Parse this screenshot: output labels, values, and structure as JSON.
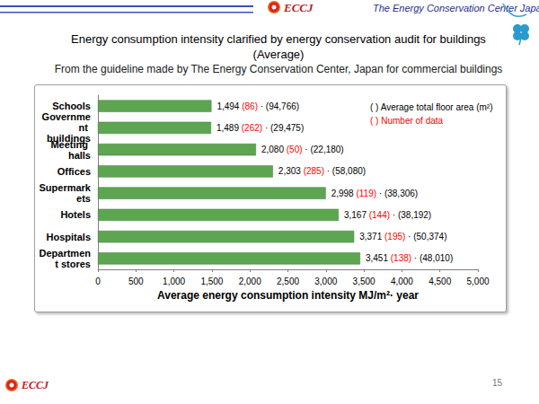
{
  "page": {
    "header": {
      "organization": "The Energy Conservation Center Japan",
      "logo": "ECCJ"
    },
    "title": "Energy consumption intensity clarified by energy conservation audit for buildings",
    "title_line2": "(Average)",
    "subtitle": "From the guideline made by The Energy Conservation Center, Japan for commercial buildings",
    "footer": {
      "logo": "ECCJ",
      "page_number": "15"
    }
  },
  "chart_data": {
    "type": "bar",
    "orientation": "horizontal",
    "categories": [
      "Schools",
      "Government buildings",
      "Meeting halls",
      "Offices",
      "Supermarkets",
      "Hotels",
      "Hospitals",
      "Department stores"
    ],
    "values": [
      1494,
      1489,
      2080,
      2303,
      2998,
      3167,
      3371,
      3451
    ],
    "value_labels": [
      "1,494 (86) · (94,766)",
      "1,489 (262) · (29,475)",
      "2,080 (50) · (22,180)",
      "2,303 (285) · (58,080)",
      "2,998 (119) · (38,306)",
      "3,167 (144) · (38,192)",
      "3,371 (195) · (50,374)",
      "3,451 (138) · (48,010)"
    ],
    "color": "#5ea552",
    "xlabel": "Average energy consumption intensity MJ/m²· year",
    "xlim": [
      0,
      5000
    ],
    "xticks": [
      0,
      500,
      {
        "value": 1000,
        "label": "1,000"
      },
      {
        "value": 1500,
        "label": "1,500"
      },
      {
        "value": 2000,
        "label": "2,000"
      },
      {
        "value": 2500,
        "label": "2,500"
      },
      {
        "value": 3000,
        "label": "3,000"
      },
      {
        "value": 3500,
        "label": "3,500"
      },
      {
        "value": 4000,
        "label": "4,000"
      },
      {
        "value": 4500,
        "label": "4,500"
      },
      {
        "value": 5000,
        "label": "5,000"
      }
    ],
    "grid": false,
    "data_labels": true,
    "annotations": [
      {
        "text": "( ) Average total floor area (m²)",
        "color": "#000000"
      },
      {
        "text": "( ) Number of data",
        "color": "#ff0000"
      }
    ]
  }
}
